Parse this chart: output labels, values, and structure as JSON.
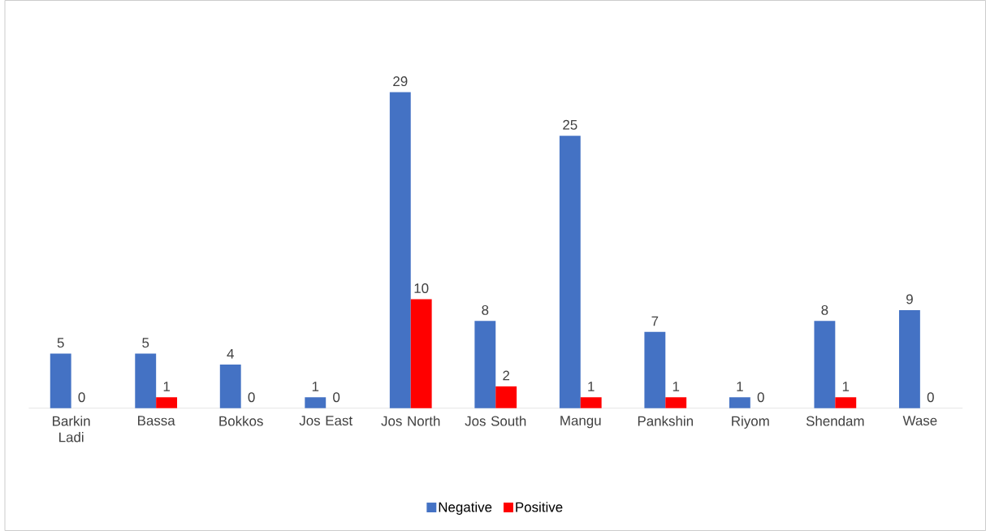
{
  "chart_data": {
    "type": "bar",
    "categories": [
      "Barkin Ladi",
      "Bassa",
      "Bokkos",
      "Jos East",
      "Jos North",
      "Jos South",
      "Mangu",
      "Pankshin",
      "Riyom",
      "Shendam",
      "Wase"
    ],
    "series": [
      {
        "name": "Negative",
        "color": "#4472c4",
        "values": [
          5,
          5,
          4,
          1,
          29,
          8,
          25,
          7,
          1,
          8,
          9
        ]
      },
      {
        "name": "Positive",
        "color": "#ff0000",
        "values": [
          0,
          1,
          0,
          0,
          10,
          2,
          1,
          1,
          0,
          1,
          0
        ]
      }
    ],
    "data_labels": true,
    "legend": "bottom"
  }
}
